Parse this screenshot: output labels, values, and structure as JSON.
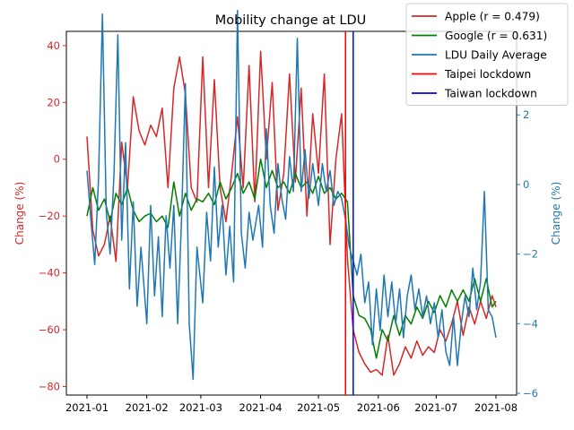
{
  "chart_data": {
    "type": "line",
    "title": "Mobility change at LDU",
    "xlabel": "",
    "ylabel_left": "Change (%)",
    "ylabel_right": "Change (%)",
    "xlim": [
      "2021-01-01",
      "2021-08-01"
    ],
    "ylim_left": [
      -83,
      45
    ],
    "ylim_right": [
      -6.05,
      4.4
    ],
    "x_ticks": [
      "2021-01",
      "2021-02",
      "2021-03",
      "2021-04",
      "2021-05",
      "2021-06",
      "2021-07",
      "2021-08"
    ],
    "y_ticks_left": [
      40,
      20,
      0,
      -20,
      -40,
      -60,
      -80
    ],
    "y_ticks_right": [
      2,
      0,
      -2,
      -4,
      -6
    ],
    "grid": false,
    "legend_position": "top-right",
    "series": [
      {
        "name": "Apple (r = 0.479)",
        "axis": "left",
        "color": "#d62728",
        "points": [
          [
            "2021-01-01",
            8
          ],
          [
            "2021-01-04",
            -25
          ],
          [
            "2021-01-07",
            -34
          ],
          [
            "2021-01-10",
            -30
          ],
          [
            "2021-01-13",
            -20
          ],
          [
            "2021-01-16",
            -36
          ],
          [
            "2021-01-19",
            6
          ],
          [
            "2021-01-22",
            -10
          ],
          [
            "2021-01-25",
            22
          ],
          [
            "2021-01-28",
            10
          ],
          [
            "2021-01-31",
            5
          ],
          [
            "2021-02-03",
            12
          ],
          [
            "2021-02-06",
            8
          ],
          [
            "2021-02-09",
            18
          ],
          [
            "2021-02-12",
            -10
          ],
          [
            "2021-02-15",
            25
          ],
          [
            "2021-02-18",
            36
          ],
          [
            "2021-02-21",
            23
          ],
          [
            "2021-02-24",
            -10
          ],
          [
            "2021-02-27",
            -15
          ],
          [
            "2021-03-02",
            36
          ],
          [
            "2021-03-05",
            -10
          ],
          [
            "2021-03-08",
            28
          ],
          [
            "2021-03-11",
            -10
          ],
          [
            "2021-03-14",
            -22
          ],
          [
            "2021-03-17",
            -5
          ],
          [
            "2021-03-20",
            15
          ],
          [
            "2021-03-23",
            -10
          ],
          [
            "2021-03-26",
            33
          ],
          [
            "2021-03-29",
            -15
          ],
          [
            "2021-04-01",
            38
          ],
          [
            "2021-04-04",
            0
          ],
          [
            "2021-04-07",
            27
          ],
          [
            "2021-04-10",
            -18
          ],
          [
            "2021-04-13",
            -5
          ],
          [
            "2021-04-16",
            30
          ],
          [
            "2021-04-19",
            -8
          ],
          [
            "2021-04-22",
            25
          ],
          [
            "2021-04-25",
            -20
          ],
          [
            "2021-04-28",
            16
          ],
          [
            "2021-05-01",
            -5
          ],
          [
            "2021-05-04",
            30
          ],
          [
            "2021-05-07",
            -30
          ],
          [
            "2021-05-10",
            0
          ],
          [
            "2021-05-13",
            16
          ],
          [
            "2021-05-16",
            -35
          ],
          [
            "2021-05-19",
            -60
          ],
          [
            "2021-05-22",
            -68
          ],
          [
            "2021-05-25",
            -72
          ],
          [
            "2021-05-28",
            -75
          ],
          [
            "2021-05-31",
            -74
          ],
          [
            "2021-06-03",
            -76
          ],
          [
            "2021-06-06",
            -62
          ],
          [
            "2021-06-09",
            -76
          ],
          [
            "2021-06-12",
            -72
          ],
          [
            "2021-06-15",
            -66
          ],
          [
            "2021-06-18",
            -70
          ],
          [
            "2021-06-21",
            -64
          ],
          [
            "2021-06-24",
            -69
          ],
          [
            "2021-06-27",
            -66
          ],
          [
            "2021-06-30",
            -68
          ],
          [
            "2021-07-03",
            -60
          ],
          [
            "2021-07-06",
            -64
          ],
          [
            "2021-07-09",
            -58
          ],
          [
            "2021-07-12",
            -50
          ],
          [
            "2021-07-15",
            -62
          ],
          [
            "2021-07-18",
            -52
          ],
          [
            "2021-07-21",
            -58
          ],
          [
            "2021-07-24",
            -50
          ],
          [
            "2021-07-27",
            -56
          ],
          [
            "2021-07-30",
            -48
          ],
          [
            "2021-08-01",
            -52
          ]
        ]
      },
      {
        "name": "Google (r = 0.631)",
        "axis": "left",
        "color": "#008000",
        "points": [
          [
            "2021-01-01",
            -20
          ],
          [
            "2021-01-04",
            -10
          ],
          [
            "2021-01-07",
            -18
          ],
          [
            "2021-01-10",
            -14
          ],
          [
            "2021-01-13",
            -22
          ],
          [
            "2021-01-16",
            -12
          ],
          [
            "2021-01-19",
            -16
          ],
          [
            "2021-01-22",
            -10
          ],
          [
            "2021-01-25",
            -18
          ],
          [
            "2021-01-28",
            -22
          ],
          [
            "2021-01-31",
            -20
          ],
          [
            "2021-02-03",
            -19
          ],
          [
            "2021-02-06",
            -22
          ],
          [
            "2021-02-09",
            -20
          ],
          [
            "2021-02-12",
            -24
          ],
          [
            "2021-02-15",
            -8
          ],
          [
            "2021-02-18",
            -20
          ],
          [
            "2021-02-21",
            -12
          ],
          [
            "2021-02-24",
            -18
          ],
          [
            "2021-02-27",
            -14
          ],
          [
            "2021-03-02",
            -15
          ],
          [
            "2021-03-05",
            -12
          ],
          [
            "2021-03-08",
            -16
          ],
          [
            "2021-03-11",
            -8
          ],
          [
            "2021-03-14",
            -14
          ],
          [
            "2021-03-17",
            -10
          ],
          [
            "2021-03-20",
            -5
          ],
          [
            "2021-03-23",
            -12
          ],
          [
            "2021-03-26",
            -8
          ],
          [
            "2021-03-29",
            -14
          ],
          [
            "2021-04-01",
            0
          ],
          [
            "2021-04-04",
            -10
          ],
          [
            "2021-04-07",
            -4
          ],
          [
            "2021-04-10",
            -10
          ],
          [
            "2021-04-13",
            -8
          ],
          [
            "2021-04-16",
            -12
          ],
          [
            "2021-04-19",
            -5
          ],
          [
            "2021-04-22",
            -10
          ],
          [
            "2021-04-25",
            -8
          ],
          [
            "2021-04-28",
            -12
          ],
          [
            "2021-05-01",
            -6
          ],
          [
            "2021-05-04",
            -12
          ],
          [
            "2021-05-07",
            -10
          ],
          [
            "2021-05-10",
            -14
          ],
          [
            "2021-05-13",
            -12
          ],
          [
            "2021-05-16",
            -15
          ],
          [
            "2021-05-19",
            -48
          ],
          [
            "2021-05-22",
            -55
          ],
          [
            "2021-05-25",
            -56
          ],
          [
            "2021-05-28",
            -60
          ],
          [
            "2021-05-31",
            -70
          ],
          [
            "2021-06-03",
            -60
          ],
          [
            "2021-06-06",
            -64
          ],
          [
            "2021-06-09",
            -55
          ],
          [
            "2021-06-12",
            -62
          ],
          [
            "2021-06-15",
            -55
          ],
          [
            "2021-06-18",
            -58
          ],
          [
            "2021-06-21",
            -52
          ],
          [
            "2021-06-24",
            -56
          ],
          [
            "2021-06-27",
            -50
          ],
          [
            "2021-06-30",
            -54
          ],
          [
            "2021-07-03",
            -48
          ],
          [
            "2021-07-06",
            -52
          ],
          [
            "2021-07-09",
            -46
          ],
          [
            "2021-07-12",
            -50
          ],
          [
            "2021-07-15",
            -46
          ],
          [
            "2021-07-18",
            -50
          ],
          [
            "2021-07-21",
            -42
          ],
          [
            "2021-07-24",
            -50
          ],
          [
            "2021-07-27",
            -42
          ],
          [
            "2021-07-30",
            -52
          ],
          [
            "2021-08-01",
            -50
          ]
        ]
      },
      {
        "name": "LDU Daily Average",
        "axis": "right",
        "color": "#1f77b4",
        "points": [
          [
            "2021-01-01",
            0.4
          ],
          [
            "2021-01-03",
            -1.0
          ],
          [
            "2021-01-05",
            -2.3
          ],
          [
            "2021-01-07",
            0.2
          ],
          [
            "2021-01-09",
            4.9
          ],
          [
            "2021-01-11",
            -0.8
          ],
          [
            "2021-01-13",
            -2.0
          ],
          [
            "2021-01-15",
            0.3
          ],
          [
            "2021-01-17",
            4.3
          ],
          [
            "2021-01-19",
            -1.6
          ],
          [
            "2021-01-21",
            1.2
          ],
          [
            "2021-01-23",
            -3.0
          ],
          [
            "2021-01-25",
            -0.5
          ],
          [
            "2021-01-27",
            -3.5
          ],
          [
            "2021-01-29",
            -1.8
          ],
          [
            "2021-02-01",
            -4.0
          ],
          [
            "2021-02-03",
            -0.6
          ],
          [
            "2021-02-05",
            -3.2
          ],
          [
            "2021-02-07",
            -1.5
          ],
          [
            "2021-02-09",
            -3.8
          ],
          [
            "2021-02-11",
            -0.9
          ],
          [
            "2021-02-13",
            -2.4
          ],
          [
            "2021-02-15",
            -0.6
          ],
          [
            "2021-02-17",
            -4.0
          ],
          [
            "2021-02-19",
            -1.0
          ],
          [
            "2021-02-21",
            2.9
          ],
          [
            "2021-02-23",
            -4.0
          ],
          [
            "2021-02-25",
            -5.6
          ],
          [
            "2021-02-27",
            -1.8
          ],
          [
            "2021-03-02",
            -3.4
          ],
          [
            "2021-03-04",
            -0.8
          ],
          [
            "2021-03-06",
            -2.2
          ],
          [
            "2021-03-08",
            0.5
          ],
          [
            "2021-03-10",
            -1.8
          ],
          [
            "2021-03-12",
            -0.6
          ],
          [
            "2021-03-14",
            -2.6
          ],
          [
            "2021-03-16",
            -1.2
          ],
          [
            "2021-03-18",
            -2.8
          ],
          [
            "2021-03-20",
            5.0
          ],
          [
            "2021-03-22",
            -1.4
          ],
          [
            "2021-03-24",
            -2.4
          ],
          [
            "2021-03-26",
            -0.8
          ],
          [
            "2021-03-28",
            -1.6
          ],
          [
            "2021-03-31",
            -0.6
          ],
          [
            "2021-04-02",
            -1.8
          ],
          [
            "2021-04-04",
            1.6
          ],
          [
            "2021-04-06",
            -0.6
          ],
          [
            "2021-04-08",
            -1.4
          ],
          [
            "2021-04-10",
            0.6
          ],
          [
            "2021-04-12",
            -0.4
          ],
          [
            "2021-04-14",
            -1.0
          ],
          [
            "2021-04-16",
            0.8
          ],
          [
            "2021-04-18",
            -0.2
          ],
          [
            "2021-04-20",
            4.2
          ],
          [
            "2021-04-22",
            -0.2
          ],
          [
            "2021-04-24",
            1.0
          ],
          [
            "2021-04-26",
            -0.4
          ],
          [
            "2021-04-28",
            0.6
          ],
          [
            "2021-05-01",
            -0.6
          ],
          [
            "2021-05-03",
            0.6
          ],
          [
            "2021-05-05",
            -0.2
          ],
          [
            "2021-05-07",
            0.4
          ],
          [
            "2021-05-09",
            -0.6
          ],
          [
            "2021-05-11",
            -0.2
          ],
          [
            "2021-05-13",
            -0.4
          ],
          [
            "2021-05-15",
            -1.0
          ],
          [
            "2021-05-17",
            -1.8
          ],
          [
            "2021-05-19",
            -2.2
          ],
          [
            "2021-05-21",
            -2.6
          ],
          [
            "2021-05-23",
            -2.0
          ],
          [
            "2021-05-25",
            -3.4
          ],
          [
            "2021-05-27",
            -2.8
          ],
          [
            "2021-05-29",
            -4.6
          ],
          [
            "2021-05-31",
            -3.0
          ],
          [
            "2021-06-02",
            -4.2
          ],
          [
            "2021-06-04",
            -2.6
          ],
          [
            "2021-06-06",
            -3.8
          ],
          [
            "2021-06-08",
            -2.8
          ],
          [
            "2021-06-10",
            -4.0
          ],
          [
            "2021-06-12",
            -3.0
          ],
          [
            "2021-06-14",
            -4.4
          ],
          [
            "2021-06-16",
            -3.2
          ],
          [
            "2021-06-18",
            -2.6
          ],
          [
            "2021-06-20",
            -3.6
          ],
          [
            "2021-06-22",
            -3.0
          ],
          [
            "2021-06-24",
            -3.8
          ],
          [
            "2021-06-26",
            -3.2
          ],
          [
            "2021-06-28",
            -4.0
          ],
          [
            "2021-06-30",
            -3.4
          ],
          [
            "2021-07-02",
            -4.4
          ],
          [
            "2021-07-04",
            -3.6
          ],
          [
            "2021-07-06",
            -4.8
          ],
          [
            "2021-07-08",
            -5.2
          ],
          [
            "2021-07-10",
            -3.8
          ],
          [
            "2021-07-12",
            -5.2
          ],
          [
            "2021-07-14",
            -4.0
          ],
          [
            "2021-07-16",
            -3.2
          ],
          [
            "2021-07-18",
            -3.8
          ],
          [
            "2021-07-20",
            -2.4
          ],
          [
            "2021-07-22",
            -3.6
          ],
          [
            "2021-07-24",
            -2.8
          ],
          [
            "2021-07-26",
            -0.2
          ],
          [
            "2021-07-28",
            -3.6
          ],
          [
            "2021-07-30",
            -3.8
          ],
          [
            "2021-08-01",
            -4.4
          ]
        ]
      }
    ],
    "vlines": [
      {
        "name": "Taipei lockdown",
        "date": "2021-05-15",
        "color": "#ff0000"
      },
      {
        "name": "Taiwan lockdown",
        "date": "2021-05-19",
        "color": "#0000ff"
      }
    ],
    "axis_colors": {
      "left": "#d62728",
      "right": "#1f77b4"
    }
  }
}
